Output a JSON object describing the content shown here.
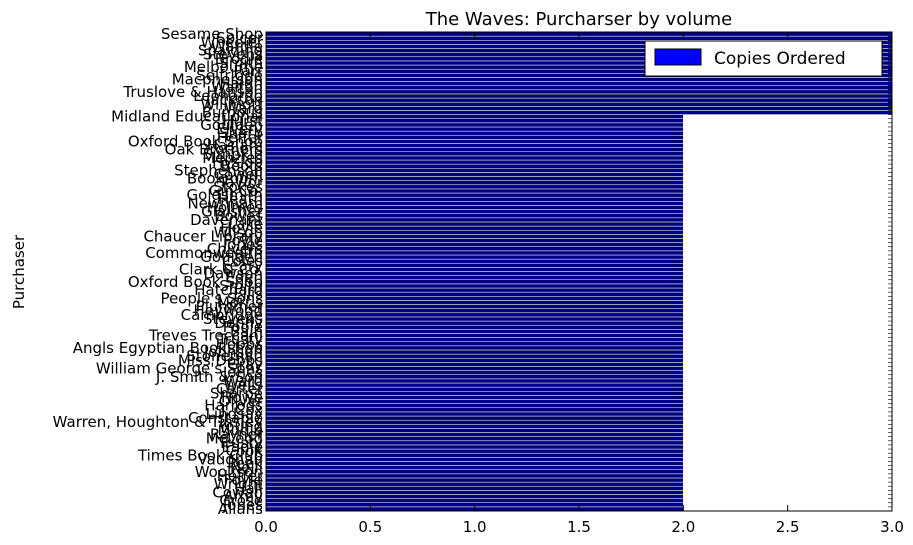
{
  "chart_data": {
    "type": "bar",
    "orientation": "horizontal",
    "title": "The Waves: Purcharser by volume",
    "xlabel": "",
    "ylabel": "Purchaser",
    "xlim": [
      0.0,
      3.0
    ],
    "xticks": [
      "0.0",
      "0.5",
      "1.0",
      "1.5",
      "2.0",
      "2.5",
      "3.0"
    ],
    "legend": {
      "label": "Copies Ordered",
      "position": "top-right",
      "color": "#0000ff"
    },
    "bar_color": "#000080",
    "bar_edge_color": "#ffffff",
    "categories": [
      "Allans",
      "Jones",
      "Grose",
      "Army",
      "Cowan",
      "Hall",
      "Wright",
      "Foyle",
      "Heffer",
      "Woolfson",
      "Neill",
      "Peek",
      "Vaughan",
      "Times Book Club",
      "Cook",
      "Eadie",
      "Trusty",
      "McLeod",
      "Rayner",
      "Mudie",
      "Young",
      "Warren, Houghton & Tinsley",
      "Constable",
      "Lindsay",
      "J. Cox",
      "Harrods",
      "Oliver",
      "Howe",
      "Sharpe",
      "Carter",
      "Wells",
      "Ward",
      "J. Smith & Son",
      "Jones",
      "William George's Sons",
      "Gray",
      "Miss Dobbs",
      "Stoneman",
      "Johnson",
      "Angls Egyptian Bookshop",
      "Hobbs",
      "Trusty",
      "Treves Treccani",
      "Bain",
      "Poole",
      "Denny",
      "Stevens",
      "Cambridge",
      "Heywood",
      "Plummer",
      "Morris",
      "People's Sons",
      "Ellis",
      "Hatchard",
      "Smith",
      "Oxford Book Shop",
      "Eden",
      "Dawson",
      "Clark & Co.",
      "Leary",
      "Coles",
      "Goulden",
      "Commonwealth",
      "Chivers",
      "Jones",
      "Foyle",
      "Chaucer Library",
      "Wilson",
      "Hoyle",
      "Lake",
      "Davenant",
      "Bowes",
      "Glaisher",
      "Holmes",
      "Newnham",
      "Heath",
      "Goldsmith",
      "Gin Co.",
      "Stokes",
      "Taylor",
      "Bookroom",
      "Cowell",
      "Stephenson",
      "Boots",
      "Hyslop",
      "Menzies",
      "Simpkin",
      "Oak Brothers",
      "Haslam",
      "Oxford Book Shop",
      "Heffer",
      "Sharp",
      "Elvery",
      "Goulden",
      "Hurst",
      "Midland Educational",
      "Bumpus",
      "Ward",
      "Willmott",
      "Jackson",
      "Leonardo",
      "Truslove & Hanson",
      "Walton",
      "Haigh",
      "Macpherson",
      "Selfridge",
      "Parr",
      "Melbourne",
      "Smith",
      "Brodie",
      "Stevens",
      "Spalding",
      "Wardle",
      "Wheeler",
      "Spicer",
      "Sesame Shop"
    ],
    "values": [
      2,
      2,
      2,
      2,
      2,
      2,
      2,
      2,
      2,
      2,
      2,
      2,
      2,
      2,
      2,
      2,
      2,
      2,
      2,
      2,
      2,
      2,
      2,
      2,
      2,
      2,
      2,
      2,
      2,
      2,
      2,
      2,
      2,
      2,
      2,
      2,
      2,
      2,
      2,
      2,
      2,
      2,
      2,
      2,
      2,
      2,
      2,
      2,
      2,
      2,
      2,
      2,
      2,
      2,
      2,
      2,
      2,
      2,
      2,
      2,
      2,
      2,
      2,
      2,
      2,
      2,
      2,
      2,
      2,
      2,
      2,
      2,
      2,
      2,
      2,
      2,
      2,
      2,
      2,
      2,
      2,
      2,
      2,
      2,
      2,
      2,
      2,
      2,
      2,
      2,
      2,
      2,
      2,
      2,
      2,
      2,
      3,
      3,
      3,
      3,
      3,
      3,
      3,
      3,
      3,
      3,
      3,
      3,
      3,
      3,
      3,
      3,
      3,
      3,
      3,
      3
    ]
  }
}
